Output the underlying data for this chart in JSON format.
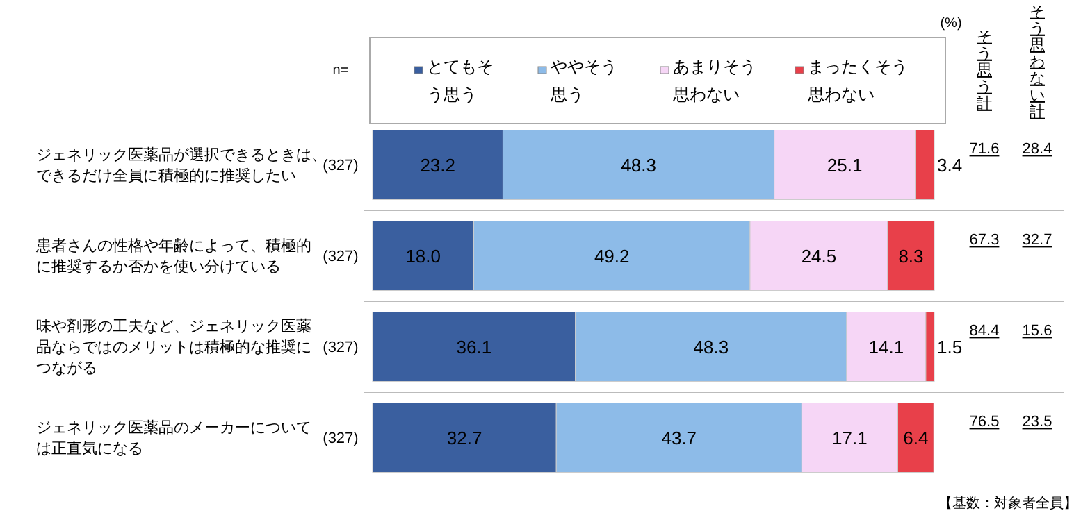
{
  "chart_data": {
    "type": "bar",
    "orientation": "horizontal",
    "stacked": true,
    "legend": "top",
    "categories": [
      "ジェネリック医薬品が選択できるときは、できるだけ全員に積極的に推奨したい",
      "患者さんの性格や年齢によって、積極的に推奨するか否かを使い分けている",
      "味や剤形の工夫など、ジェネリック医薬品ならではのメリットは積極的な推奨につながる",
      "ジェネリック医薬品のメーカーについては正直気になる"
    ],
    "series": [
      {
        "name": "とてもそう思う",
        "color": "#3a5f9f",
        "values": [
          23.2,
          18.0,
          36.1,
          32.7
        ],
        "value_labels": [
          "23.2",
          "18.0",
          "36.1",
          "32.7"
        ]
      },
      {
        "name": "ややそう思う",
        "color": "#8dbbe8",
        "values": [
          48.3,
          49.2,
          48.3,
          43.7
        ],
        "value_labels": [
          "48.3",
          "49.2",
          "48.3",
          "43.7"
        ]
      },
      {
        "name": "あまりそう思わない",
        "color": "#f6d6f6",
        "values": [
          25.1,
          24.5,
          14.1,
          17.1
        ],
        "value_labels": [
          "25.1",
          "24.5",
          "14.1",
          "17.1"
        ]
      },
      {
        "name": "まったくそう思わない",
        "color": "#e8404a",
        "values": [
          3.4,
          8.3,
          1.5,
          6.4
        ],
        "value_labels": [
          "3.4",
          "8.3",
          "1.5",
          "6.4"
        ]
      }
    ],
    "annotations": [
      "n=",
      "(%)",
      "そう思う計",
      "そう思わない計",
      "【基数：対象者全員】",
      "(327)",
      "(327)",
      "(327)",
      "(327)",
      "71.6",
      "28.4",
      "67.3",
      "32.7",
      "84.4",
      "15.6",
      "76.5",
      "23.5"
    ]
  }
}
